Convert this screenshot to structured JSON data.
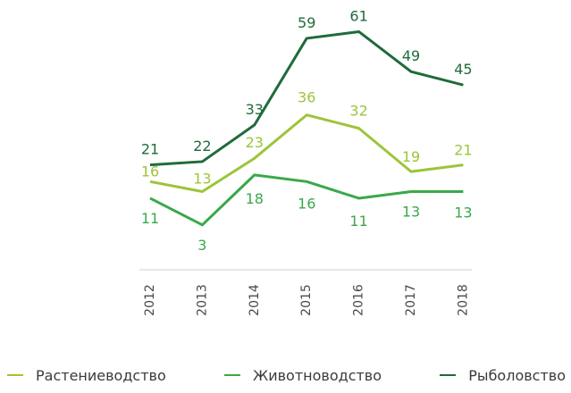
{
  "chart_data": {
    "type": "line",
    "categories": [
      "2012",
      "2013",
      "2014",
      "2015",
      "2016",
      "2017",
      "2018"
    ],
    "series": [
      {
        "name": "Растениеводство",
        "color": "#9cc43a",
        "values": [
          16,
          13,
          23,
          36,
          32,
          19,
          21
        ]
      },
      {
        "name": "Животноводство",
        "color": "#3aa84a",
        "values": [
          11,
          3,
          18,
          16,
          11,
          13,
          13
        ]
      },
      {
        "name": "Рыболовство",
        "color": "#1e6b3a",
        "values": [
          21,
          22,
          33,
          59,
          61,
          49,
          45
        ]
      }
    ],
    "title": "",
    "xlabel": "",
    "ylabel": "",
    "grid": false,
    "legend": "bottom",
    "axis_color": "#cfcfcf"
  }
}
